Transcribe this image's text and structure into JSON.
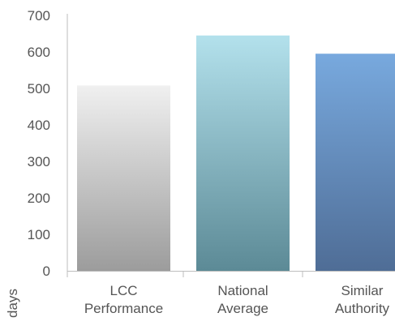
{
  "chart_data": {
    "type": "bar",
    "categories": [
      [
        "LCC",
        "Performance"
      ],
      [
        "National",
        "Average"
      ],
      [
        "Similar",
        "Authority"
      ]
    ],
    "values": [
      508,
      645,
      595
    ],
    "ylabel": "days",
    "ylim": [
      0,
      700
    ],
    "yticks": [
      0,
      100,
      200,
      300,
      400,
      500,
      600,
      700
    ],
    "grid": false,
    "bar_gradients": [
      {
        "top": "#f0f0f0",
        "bottom": "#9c9c9c"
      },
      {
        "top": "#b3e1ec",
        "bottom": "#5c8a96"
      },
      {
        "top": "#78a9de",
        "bottom": "#4f6d96"
      }
    ],
    "axis_color": "#bdbdbd"
  }
}
